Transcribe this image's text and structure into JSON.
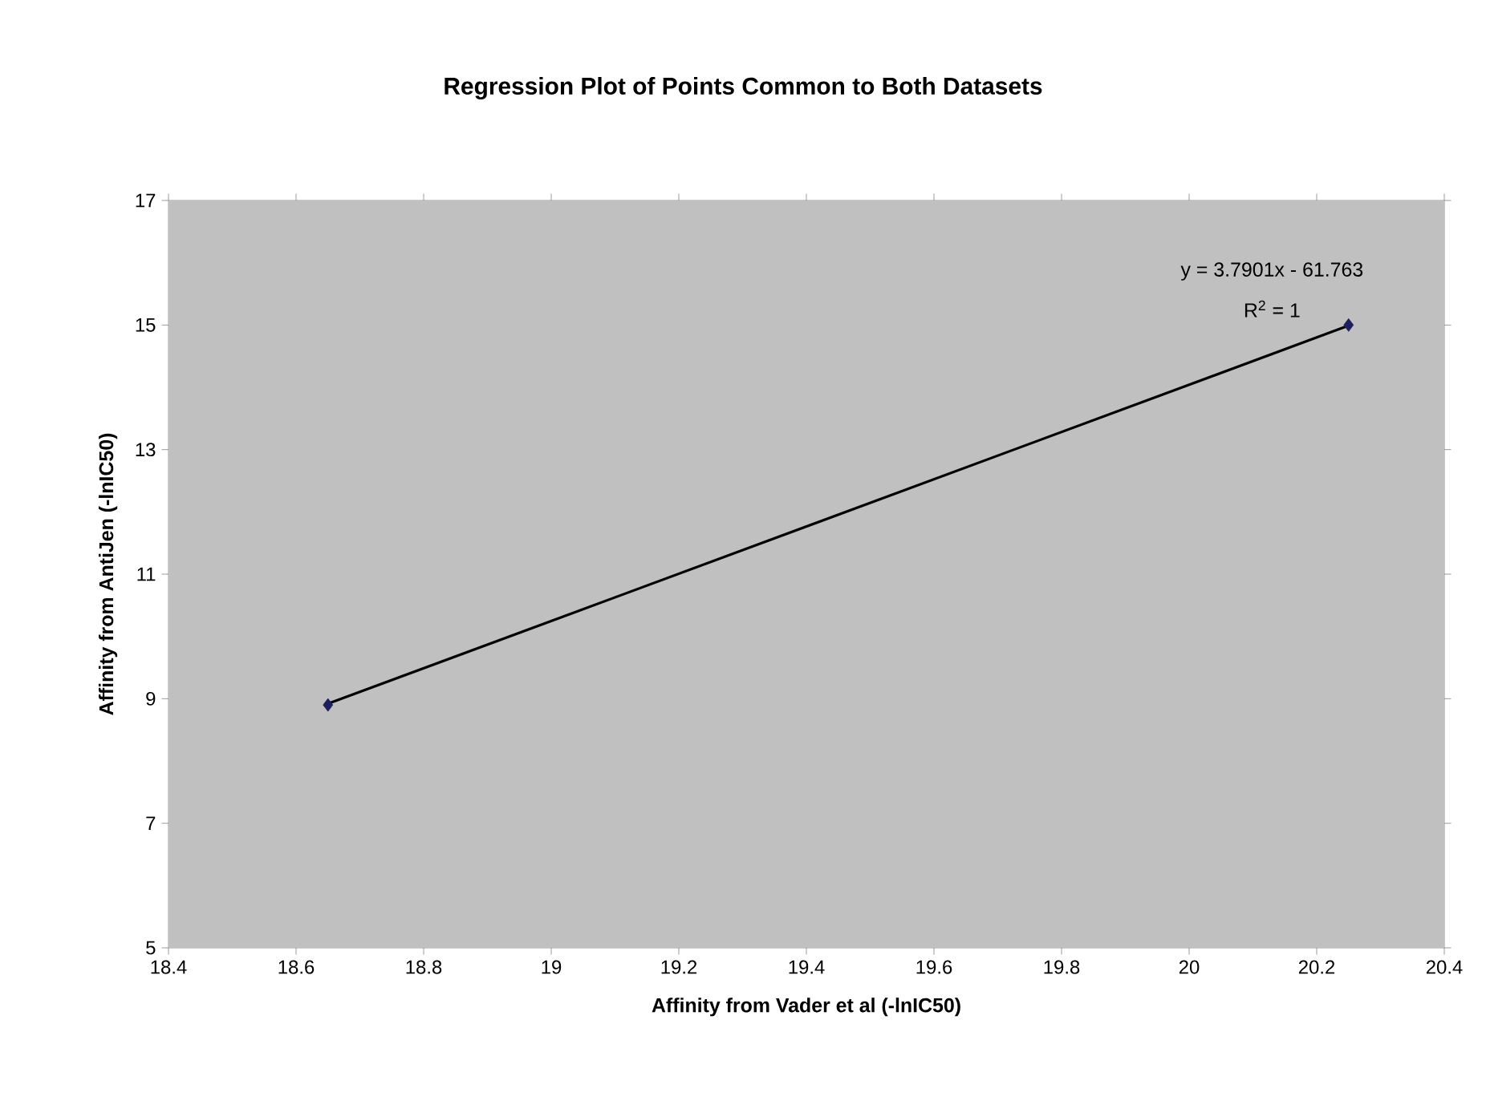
{
  "chart_data": {
    "type": "scatter",
    "title": "Regression Plot of Points Common to Both Datasets",
    "xlabel": "Affinity from Vader et al (-lnIC50)",
    "ylabel": "Affinity from AntiJen (-lnIC50)",
    "series": [
      {
        "color": "#1f1f5f",
        "values": [
          8.9,
          15.0
        ],
        "marker": "diamond"
      },
      {
        "type": "line",
        "color": "#000000",
        "values": [
          8.92,
          14.99
        ],
        "line_style": "solid",
        "marker": "none"
      }
    ],
    "annotations": [
      "y = 3.7901x - 61.763",
      "R$^{2}$ = 1"
    ],
    "xlim": [
      18.4,
      20.4
    ],
    "xticks": [
      18.4,
      18.6,
      18.8,
      19,
      19.2,
      19.4,
      19.6,
      19.8,
      20,
      20.2,
      20.4
    ],
    "x": [
      18.65,
      20.25
    ],
    "ylim": [
      5,
      17
    ],
    "yticks": [
      5,
      7,
      9,
      11,
      13,
      15,
      17
    ]
  }
}
